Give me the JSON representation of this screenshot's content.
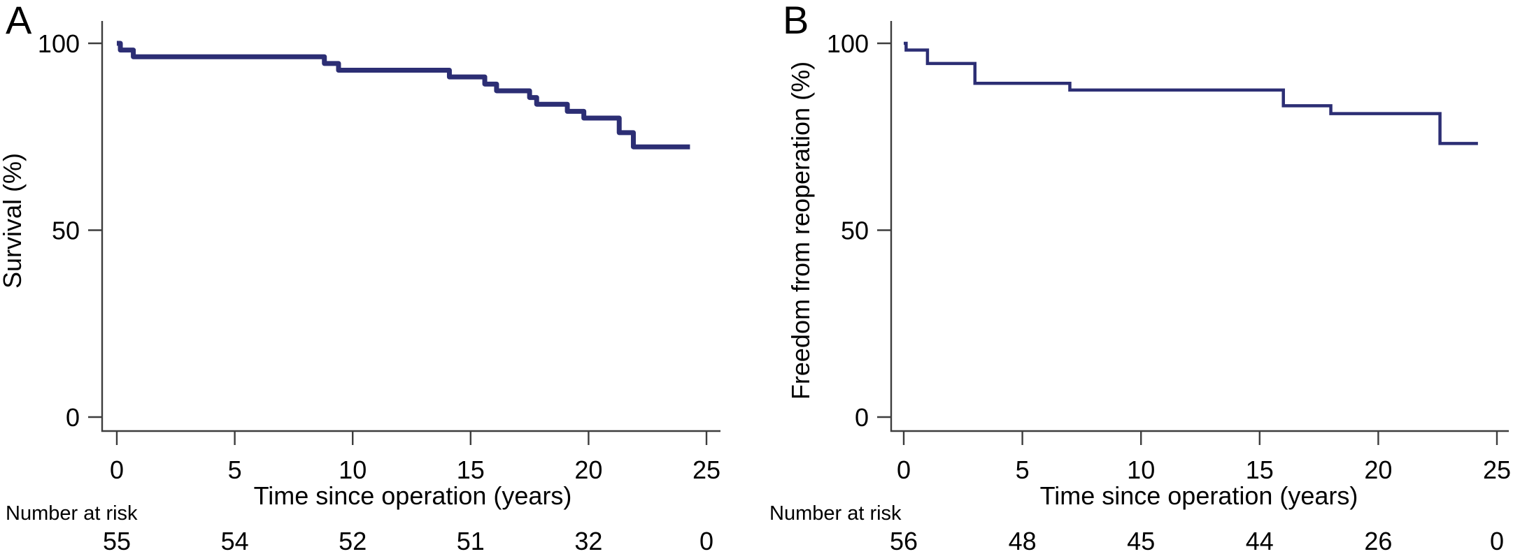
{
  "figure": {
    "panels": [
      {
        "letter": "A"
      },
      {
        "letter": "B"
      }
    ],
    "colors": {
      "curve": "#2c2e74",
      "axis": "#3d3d3d",
      "text": "#000000"
    }
  },
  "chart_data": [
    {
      "type": "line",
      "subtype": "kaplan_meier_step_curve",
      "panel": "A",
      "title": "",
      "xlabel": "Time since operation (years)",
      "ylabel": "Survival (%)",
      "xlim": [
        0,
        25
      ],
      "ylim": [
        0,
        100
      ],
      "xticks": [
        0,
        5,
        10,
        15,
        20,
        25
      ],
      "yticks": [
        0,
        50,
        100
      ],
      "grid": false,
      "legend_position": "none",
      "line_color": "#2c2e74",
      "steps": [
        [
          0,
          100
        ],
        [
          0.15,
          98.2
        ],
        [
          0.7,
          96.4
        ],
        [
          8.8,
          94.6
        ],
        [
          9.4,
          92.8
        ],
        [
          14.1,
          91.0
        ],
        [
          15.6,
          89.1
        ],
        [
          16.1,
          87.3
        ],
        [
          17.5,
          85.5
        ],
        [
          17.8,
          83.7
        ],
        [
          19.1,
          81.8
        ],
        [
          19.8,
          80.0
        ],
        [
          21.3,
          76.1
        ],
        [
          21.9,
          72.3
        ],
        [
          24.3,
          72.3
        ]
      ],
      "number_at_risk": {
        "label": "Number at risk",
        "times": [
          0,
          5,
          10,
          15,
          20,
          25
        ],
        "counts": [
          55,
          54,
          52,
          51,
          32,
          0
        ]
      }
    },
    {
      "type": "line",
      "subtype": "kaplan_meier_step_curve",
      "panel": "B",
      "title": "",
      "xlabel": "Time since operation (years)",
      "ylabel": "Freedom from reoperation (%)",
      "xlim": [
        0,
        25
      ],
      "ylim": [
        0,
        100
      ],
      "xticks": [
        0,
        5,
        10,
        15,
        20,
        25
      ],
      "yticks": [
        0,
        50,
        100
      ],
      "grid": false,
      "legend_position": "none",
      "line_color": "#2c2e74",
      "steps": [
        [
          0,
          100
        ],
        [
          0.1,
          98.2
        ],
        [
          1.0,
          94.6
        ],
        [
          3.0,
          89.3
        ],
        [
          7.0,
          87.5
        ],
        [
          16.0,
          83.3
        ],
        [
          18.0,
          81.2
        ],
        [
          22.6,
          73.2
        ],
        [
          24.2,
          73.2
        ]
      ],
      "number_at_risk": {
        "label": "Number at risk",
        "times": [
          0,
          5,
          10,
          15,
          20,
          25
        ],
        "counts": [
          56,
          48,
          45,
          44,
          26,
          0
        ]
      }
    }
  ]
}
